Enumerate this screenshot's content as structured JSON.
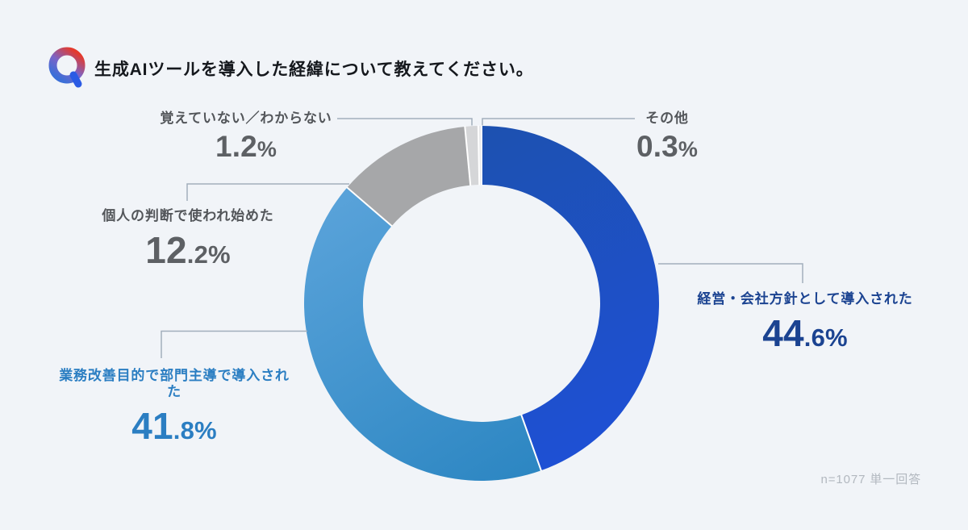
{
  "header": {
    "title": "生成AIツールを導入した経緯について教えてください。",
    "q_icon": "question-logo"
  },
  "chart_data": {
    "type": "pie",
    "style": "donut",
    "rotation": "clockwise-from-top",
    "title": "生成AIツールを導入した経緯について教えてください。",
    "categories": [
      "経営・会社方針として導入された",
      "業務改善目的で部門主導で導入された",
      "個人の判断で使われ始めた",
      "覚えていない／わからない",
      "その他"
    ],
    "values": [
      44.6,
      41.8,
      12.2,
      1.2,
      0.3
    ],
    "unit": "%",
    "colors": [
      "#1e51d6",
      "#3e93d2",
      "#a6a7a9",
      "#d5d6d8",
      "#e7e8ea"
    ],
    "separator_color": "#ffffff",
    "labels": [
      {
        "text": "経営・会社方針として導入された",
        "value_main": "44",
        "value_sub": ".6%"
      },
      {
        "text": "業務改善目的で部門主導で導入された",
        "value_main": "41",
        "value_sub": ".8%"
      },
      {
        "text": "個人の判断で使われ始めた",
        "value_main": "12",
        "value_sub": ".2%"
      },
      {
        "text": "覚えていない／わからない",
        "value_main": "1.2",
        "value_sub": "%"
      },
      {
        "text": "その他",
        "value_main": "0.3",
        "value_sub": "%"
      }
    ]
  },
  "footer": {
    "note": "n=1077 単一回答"
  }
}
